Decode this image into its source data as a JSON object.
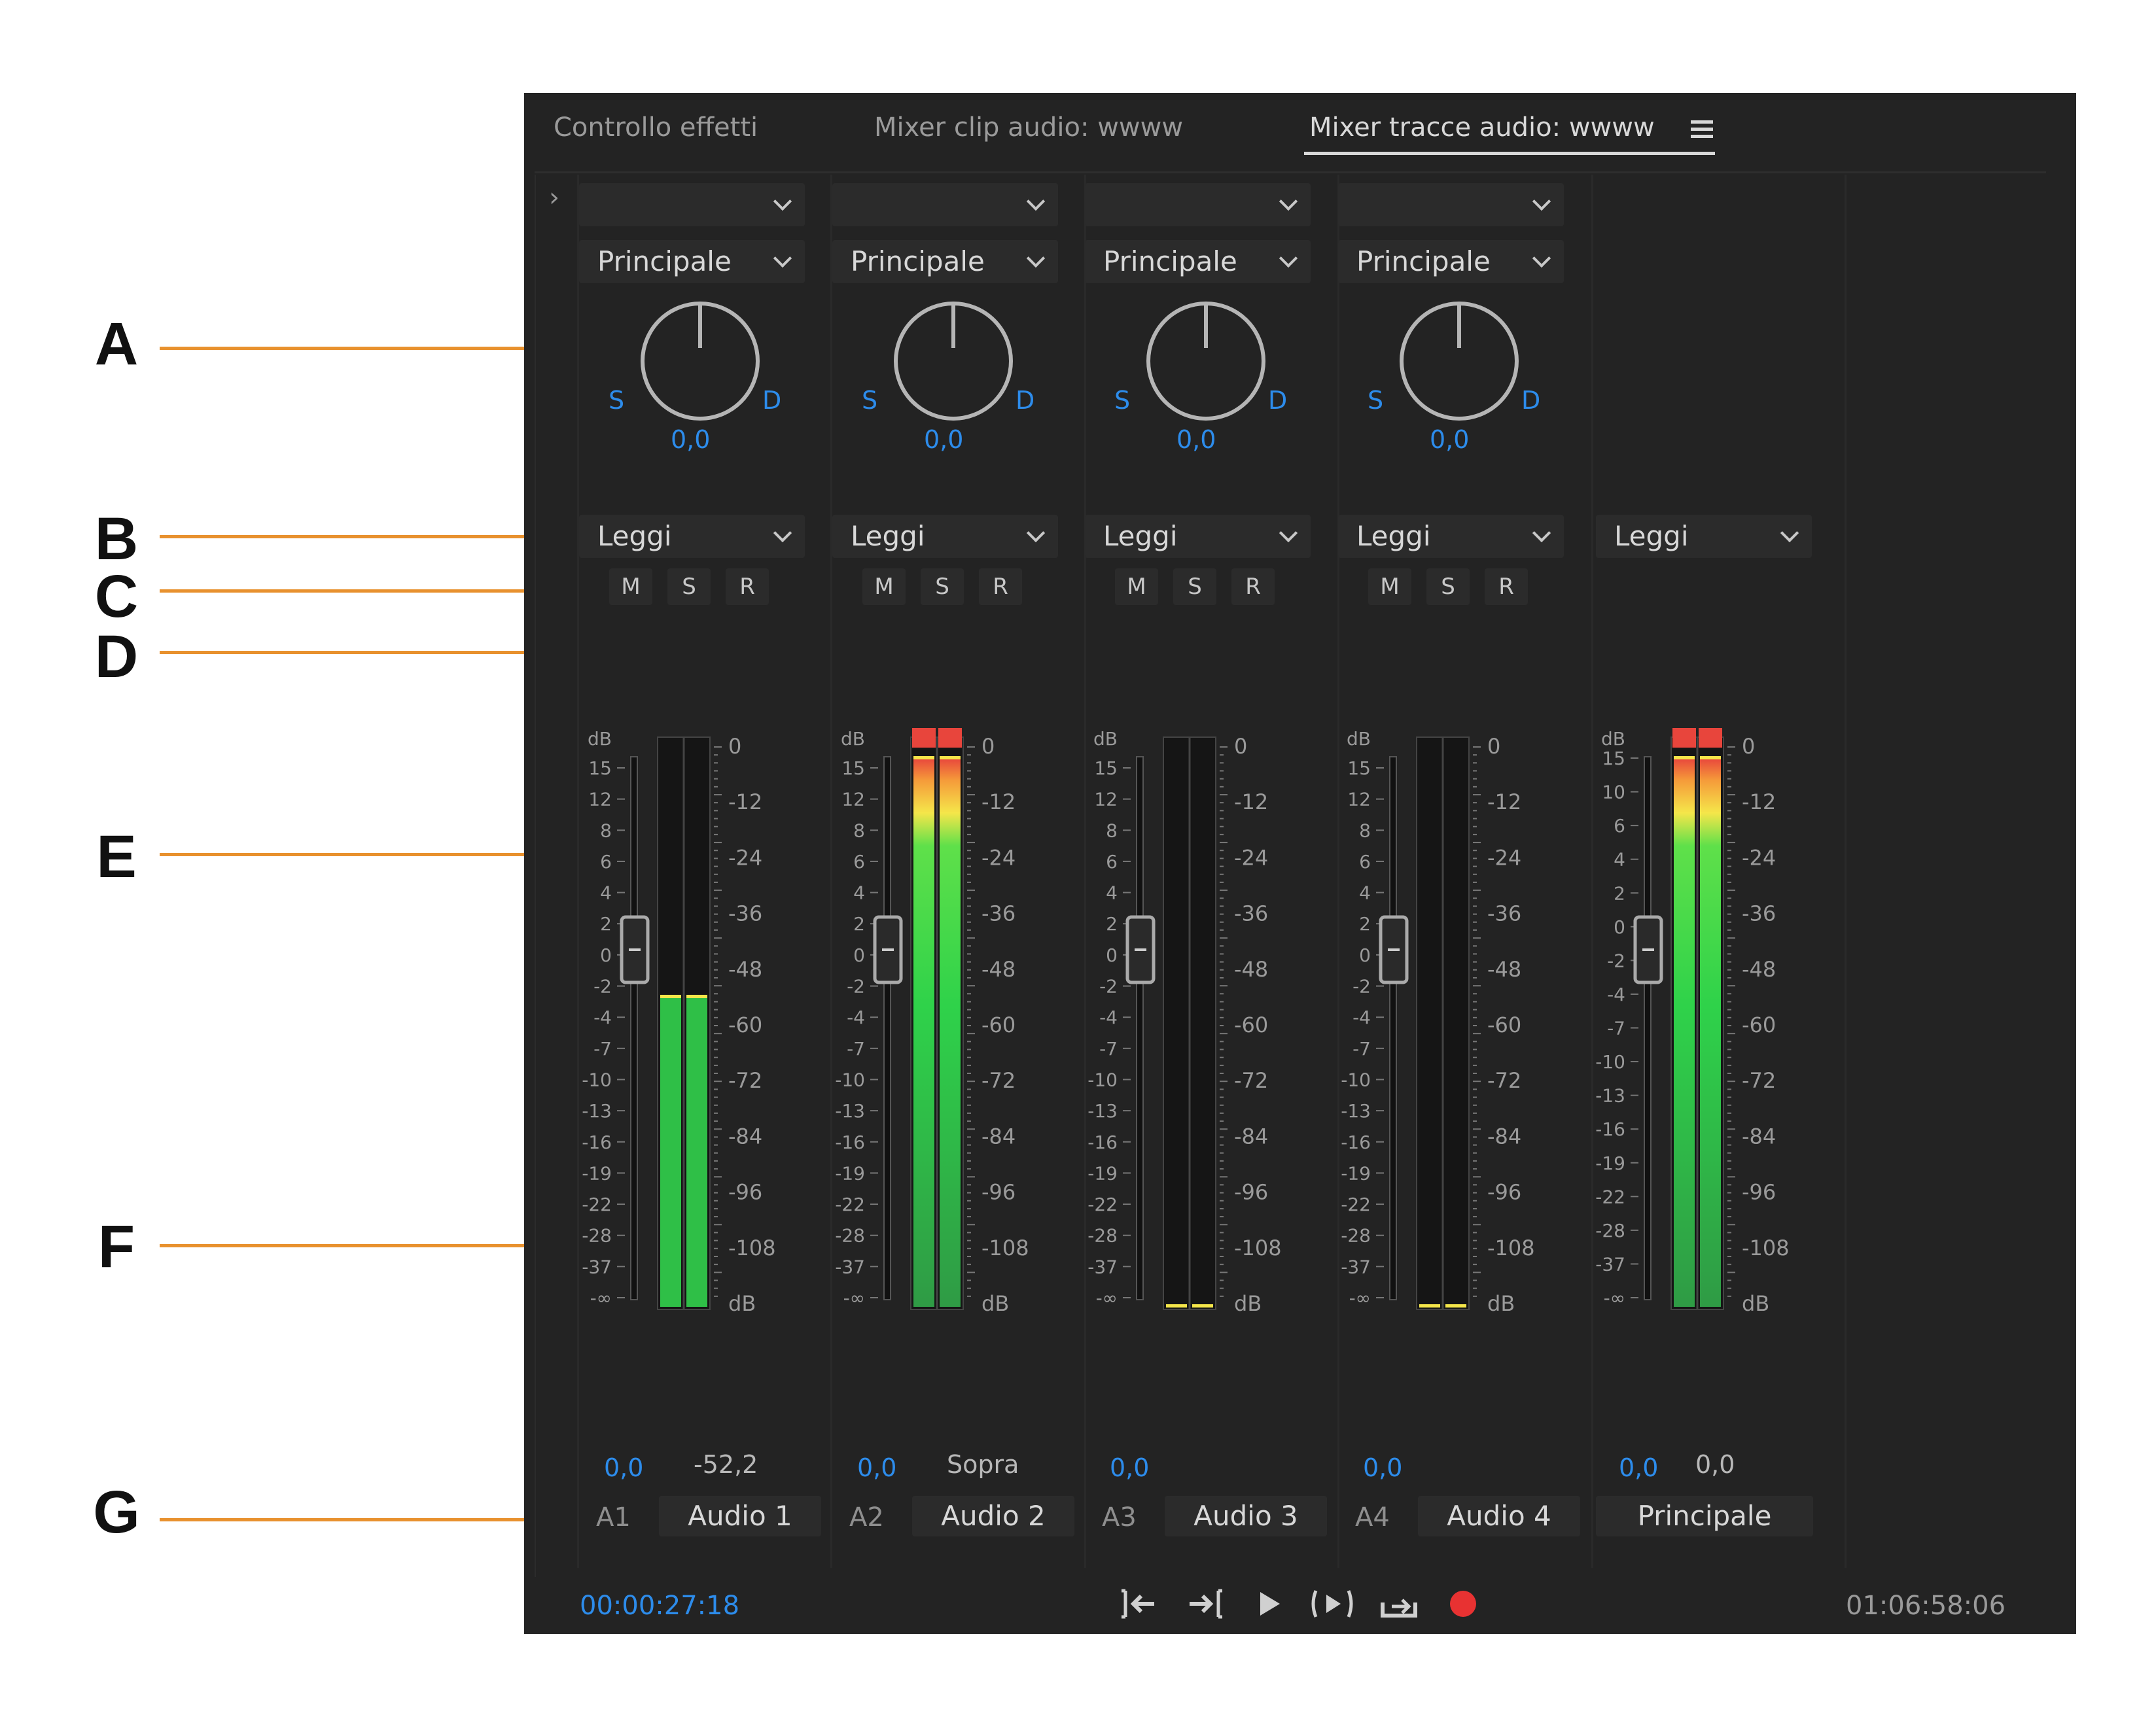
{
  "callouts": [
    "A",
    "B",
    "C",
    "D",
    "E",
    "F",
    "G"
  ],
  "tabs": [
    {
      "label": "Controllo effetti"
    },
    {
      "label": "Mixer clip audio: wwww"
    },
    {
      "label": "Mixer tracce audio: wwww",
      "active": true
    }
  ],
  "knob": {
    "left": "S",
    "right": "D"
  },
  "msr": {
    "mute": "M",
    "solo": "S",
    "record": "R"
  },
  "fader_scale": [
    "dB",
    "15",
    "12",
    "8",
    "6",
    "4",
    "2",
    "0",
    "-2",
    "-4",
    "-7",
    "-10",
    "-13",
    "-16",
    "-19",
    "-22",
    "-28",
    "-37",
    "-∞"
  ],
  "master_fader_scale": [
    "dB",
    "15",
    "10",
    "6",
    "4",
    "2",
    "0",
    "-2",
    "-4",
    "-7",
    "-10",
    "-13",
    "-16",
    "-19",
    "-22",
    "-28",
    "-37",
    "-∞"
  ],
  "meter_scale": [
    "0",
    "-12",
    "-24",
    "-36",
    "-48",
    "-60",
    "-72",
    "-84",
    "-96",
    "-108",
    "dB"
  ],
  "tracks": [
    {
      "id": "A1",
      "name": "Audio 1",
      "effect": "",
      "routing": "Principale",
      "pan": "0,0",
      "automation": "Leggi",
      "volume": "0,0",
      "meter_readout": "-52,2",
      "level": 0.565,
      "clip": false
    },
    {
      "id": "A2",
      "name": "Audio 2",
      "effect": "",
      "routing": "Principale",
      "pan": "0,0",
      "automation": "Leggi",
      "volume": "0,0",
      "meter_readout": "Sopra",
      "level": 1.0,
      "clip": true
    },
    {
      "id": "A3",
      "name": "Audio 3",
      "effect": "",
      "routing": "Principale",
      "pan": "0,0",
      "automation": "Leggi",
      "volume": "0,0",
      "meter_readout": "",
      "level": 0.0,
      "clip": false
    },
    {
      "id": "A4",
      "name": "Audio 4",
      "effect": "",
      "routing": "Principale",
      "pan": "0,0",
      "automation": "Leggi",
      "volume": "0,0",
      "meter_readout": "",
      "level": 0.0,
      "clip": false
    }
  ],
  "master": {
    "name": "Principale",
    "automation": "Leggi",
    "volume": "0,0",
    "meter_readout": "0,0",
    "level": 1.0,
    "clip": true
  },
  "transport": {
    "current_time": "00:00:27:18",
    "duration": "01:06:58:06",
    "buttons": [
      "go-to-in-icon",
      "go-to-out-icon",
      "play-icon",
      "loop-icon",
      "play-in-to-out-icon",
      "record-icon"
    ]
  },
  "colors": {
    "panel_bg": "#232323",
    "accent_blue": "#2d8ceb",
    "callout_orange": "#e8912e",
    "meter_green": "#2fd24a",
    "meter_yellow": "#f5e64a",
    "meter_red": "#e8453c",
    "record_red": "#e83232"
  }
}
